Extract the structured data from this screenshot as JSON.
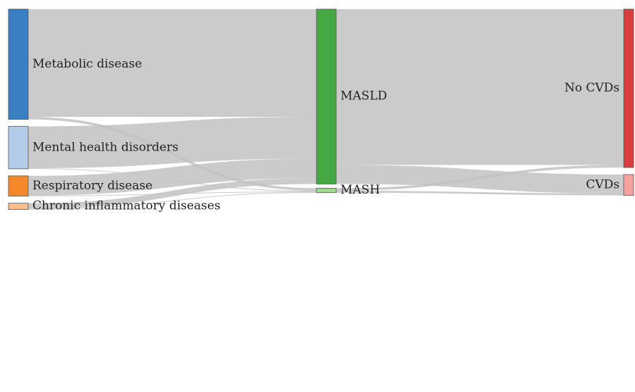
{
  "diagram": {
    "type": "sankey",
    "nodes": [
      {
        "id": "metabolic",
        "label": "Metabolic disease",
        "color": "#3a7fc1",
        "column": 0
      },
      {
        "id": "mental",
        "label": "Mental health disorders",
        "color": "#b3cbe9",
        "column": 0
      },
      {
        "id": "respiratory",
        "label": "Respiratory disease",
        "color": "#f5892a",
        "column": 0
      },
      {
        "id": "inflammatory",
        "label": "Chronic inflammatory diseases",
        "color": "#f8be8e",
        "column": 0
      },
      {
        "id": "masld",
        "label": "MASLD",
        "color": "#45a845",
        "column": 1
      },
      {
        "id": "mash",
        "label": "MASH",
        "color": "#9ddc8c",
        "column": 1
      },
      {
        "id": "nocvd",
        "label": "No CVDs",
        "color": "#d93d3d",
        "column": 2
      },
      {
        "id": "cvd",
        "label": "CVDs",
        "color": "#f6a3a0",
        "column": 2
      }
    ],
    "links": [
      {
        "source": "metabolic",
        "target": "masld",
        "value": 170
      },
      {
        "source": "metabolic",
        "target": "mash",
        "value": 4
      },
      {
        "source": "mental",
        "target": "masld",
        "value": 66
      },
      {
        "source": "mental",
        "target": "mash",
        "value": 1
      },
      {
        "source": "respiratory",
        "target": "masld",
        "value": 31
      },
      {
        "source": "respiratory",
        "target": "mash",
        "value": 1
      },
      {
        "source": "inflammatory",
        "target": "masld",
        "value": 9
      },
      {
        "source": "inflammatory",
        "target": "mash",
        "value": 1
      },
      {
        "source": "masld",
        "target": "nocvd",
        "value": 246
      },
      {
        "source": "masld",
        "target": "cvd",
        "value": 30
      },
      {
        "source": "mash",
        "target": "nocvd",
        "value": 4
      },
      {
        "source": "mash",
        "target": "cvd",
        "value": 3
      }
    ]
  }
}
